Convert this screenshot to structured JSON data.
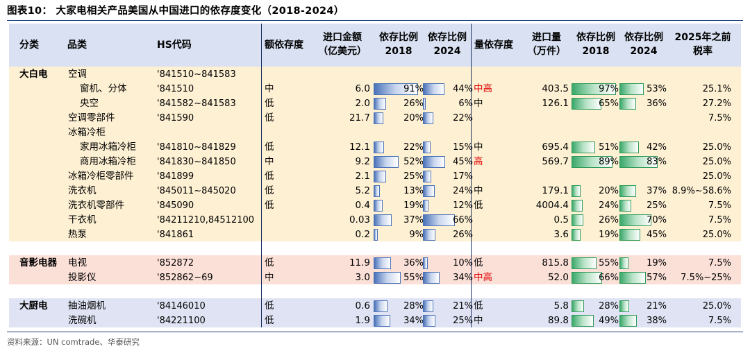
{
  "title": "图表10：  大家电相关产品美国从中国进口的依存度变化（2018-2024）",
  "source": "资料来源：UN comtrade、华泰研究",
  "headers": {
    "category": "分类",
    "product": "品类",
    "hs": "HS代码",
    "value_dep": "额依存度",
    "import_value_1": "进口金额",
    "import_value_2": "（亿美元）",
    "ratio_a_1": "依存比例",
    "ratio_a_2": "2018",
    "ratio_b_1": "依存比例",
    "ratio_b_2": "2024",
    "volume_dep": "量依存度",
    "import_volume_1": "进口量",
    "import_volume_2": "（万件）",
    "ratio_c_1": "依存比例",
    "ratio_c_2": "2018",
    "ratio_d_1": "依存比例",
    "ratio_d_2": "2024",
    "tariff_1": "2025年之前",
    "tariff_2": "税率"
  },
  "colors": {
    "band_white_goods": "#fdf0d3",
    "band_av": "#fbe0d8",
    "band_kitchen": "#dfe3f3",
    "header": "#d9e1f2",
    "blue_bar": "#4a72b8",
    "green_bar": "#3aa86a",
    "highlight_red": "#e00000"
  },
  "rows": [
    {
      "cat": "大白电",
      "name": "空调",
      "indent": 0,
      "hs": "'841510~841583",
      "vdep": "",
      "amt": "",
      "r18": null,
      "r24": null,
      "qdep": "",
      "qdep_red": false,
      "qty": "",
      "q18": null,
      "q24": null,
      "tax": ""
    },
    {
      "cat": "",
      "name": "窗机、分体",
      "indent": 1,
      "hs": "'841510",
      "vdep": "中",
      "amt": "6.0",
      "r18": 0.91,
      "r24": 0.44,
      "qdep": "中高",
      "qdep_red": true,
      "qty": "403.5",
      "q18": 0.97,
      "q24": 0.53,
      "tax": "25.1%"
    },
    {
      "cat": "",
      "name": "央空",
      "indent": 1,
      "hs": "'841582~841583",
      "vdep": "低",
      "amt": "2.0",
      "r18": 0.26,
      "r24": 0.06,
      "qdep": "中",
      "qdep_red": false,
      "qty": "126.1",
      "q18": 0.65,
      "q24": 0.36,
      "tax": "27.2%"
    },
    {
      "cat": "",
      "name": "空调零部件",
      "indent": 0,
      "hs": "'841590",
      "vdep": "低",
      "amt": "21.7",
      "r18": 0.2,
      "r24": 0.22,
      "qdep": "",
      "qdep_red": false,
      "qty": "",
      "q18": null,
      "q24": null,
      "tax": "7.5%"
    },
    {
      "cat": "",
      "name": "冰箱冷柜",
      "indent": 0,
      "hs": "",
      "vdep": "",
      "amt": "",
      "r18": null,
      "r24": null,
      "qdep": "",
      "qdep_red": false,
      "qty": "",
      "q18": null,
      "q24": null,
      "tax": ""
    },
    {
      "cat": "",
      "name": "家用冰箱冷柜",
      "indent": 1,
      "hs": "'841810~841829",
      "vdep": "低",
      "amt": "12.1",
      "r18": 0.22,
      "r24": 0.15,
      "qdep": "中",
      "qdep_red": false,
      "qty": "695.4",
      "q18": 0.51,
      "q24": 0.42,
      "tax": "25.0%"
    },
    {
      "cat": "",
      "name": "商用冰箱冷柜",
      "indent": 1,
      "hs": "'841830~841850",
      "vdep": "中",
      "amt": "9.2",
      "r18": 0.52,
      "r24": 0.45,
      "qdep": "高",
      "qdep_red": true,
      "qty": "569.7",
      "q18": 0.89,
      "q24": 0.83,
      "tax": "25.0%"
    },
    {
      "cat": "",
      "name": "冰箱冷柜零部件",
      "indent": 0,
      "hs": "'841899",
      "vdep": "低",
      "amt": "2.1",
      "r18": 0.25,
      "r24": 0.17,
      "qdep": "",
      "qdep_red": false,
      "qty": "",
      "q18": null,
      "q24": null,
      "tax": "25.0%"
    },
    {
      "cat": "",
      "name": "洗衣机",
      "indent": 0,
      "hs": "'845011~845020",
      "vdep": "低",
      "amt": "5.2",
      "r18": 0.13,
      "r24": 0.24,
      "qdep": "中",
      "qdep_red": false,
      "qty": "179.1",
      "q18": 0.2,
      "q24": 0.37,
      "tax": "8.9%~58.6%"
    },
    {
      "cat": "",
      "name": "洗衣机零部件",
      "indent": 0,
      "hs": "'845090",
      "vdep": "低",
      "amt": "0.4",
      "r18": 0.19,
      "r24": 0.12,
      "qdep": "低",
      "qdep_red": false,
      "qty": "4004.4",
      "q18": 0.24,
      "q24": 0.25,
      "tax": "7.5%"
    },
    {
      "cat": "",
      "name": "干衣机",
      "indent": 0,
      "hs": "'84211210,84512100",
      "vdep": "",
      "amt": "0.03",
      "r18": 0.37,
      "r24": 0.66,
      "qdep": "",
      "qdep_red": false,
      "qty": "0.5",
      "q18": 0.26,
      "q24": 0.7,
      "tax": "7.5%"
    },
    {
      "cat": "",
      "name": "热泵",
      "indent": 0,
      "hs": "'841861",
      "vdep": "",
      "amt": "0.2",
      "r18": 0.09,
      "r24": 0.26,
      "qdep": "",
      "qdep_red": false,
      "qty": "3.6",
      "q18": 0.19,
      "q24": 0.45,
      "tax": "25.0%"
    },
    {
      "cat": "音影电器",
      "name": "电视",
      "indent": 0,
      "hs": "'852872",
      "vdep": "低",
      "amt": "11.9",
      "r18": 0.36,
      "r24": 0.1,
      "qdep": "低",
      "qdep_red": false,
      "qty": "815.8",
      "q18": 0.55,
      "q24": 0.19,
      "tax": "7.5%"
    },
    {
      "cat": "",
      "name": "投影仪",
      "indent": 0,
      "hs": "'852862~69",
      "vdep": "中",
      "amt": "3.0",
      "r18": 0.55,
      "r24": 0.34,
      "qdep": "中高",
      "qdep_red": true,
      "qty": "52.0",
      "q18": 0.66,
      "q24": 0.57,
      "tax": "7.5%~25%"
    },
    {
      "cat": "大厨电",
      "name": "抽油烟机",
      "indent": 0,
      "hs": "'84146010",
      "vdep": "低",
      "amt": "0.6",
      "r18": 0.28,
      "r24": 0.21,
      "qdep": "低",
      "qdep_red": false,
      "qty": "5.8",
      "q18": 0.28,
      "q24": 0.21,
      "tax": "25.0%"
    },
    {
      "cat": "",
      "name": "洗碗机",
      "indent": 0,
      "hs": "'84221100",
      "vdep": "低",
      "amt": "1.9",
      "r18": 0.34,
      "r24": 0.25,
      "qdep": "中",
      "qdep_red": false,
      "qty": "89.8",
      "q18": 0.49,
      "q24": 0.38,
      "tax": "7.5%"
    }
  ]
}
